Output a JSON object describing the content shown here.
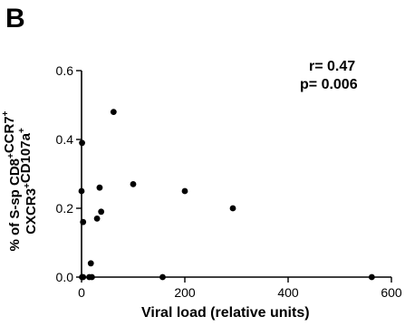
{
  "panel_label": "B",
  "annotations": {
    "r": "r= 0.47",
    "p": "p= 0.006"
  },
  "chart_data": {
    "type": "scatter",
    "xlabel": "Viral load (relative units)",
    "ylabel_parts": [
      {
        "line": 1,
        "text": "% of S-sp CD8",
        "sup": "+"
      },
      {
        "line": 1,
        "text": "CCR7",
        "sup": "+"
      },
      {
        "line": 2,
        "text": "CXCR3",
        "sup": "+"
      },
      {
        "line": 2,
        "text": "CD107a",
        "sup": "+"
      }
    ],
    "xlim": [
      0,
      600
    ],
    "ylim": [
      0,
      0.6
    ],
    "xticks": [
      0,
      200,
      400,
      600
    ],
    "yticks": [
      "0.0",
      "0.2",
      "0.4",
      "0.6"
    ],
    "yticks_values": [
      0,
      0.2,
      0.4,
      0.6
    ],
    "points": [
      {
        "x": 1,
        "y": 0.39
      },
      {
        "x": 0,
        "y": 0.25
      },
      {
        "x": 3,
        "y": 0.16
      },
      {
        "x": 1,
        "y": 0.0
      },
      {
        "x": 3,
        "y": 0.0
      },
      {
        "x": 15,
        "y": 0.0
      },
      {
        "x": 20,
        "y": 0.0
      },
      {
        "x": 18,
        "y": 0.04
      },
      {
        "x": 30,
        "y": 0.17
      },
      {
        "x": 35,
        "y": 0.26
      },
      {
        "x": 38,
        "y": 0.19
      },
      {
        "x": 62,
        "y": 0.48
      },
      {
        "x": 100,
        "y": 0.27
      },
      {
        "x": 200,
        "y": 0.25
      },
      {
        "x": 293,
        "y": 0.2
      },
      {
        "x": 157,
        "y": 0.0
      },
      {
        "x": 562,
        "y": 0.0
      }
    ]
  }
}
